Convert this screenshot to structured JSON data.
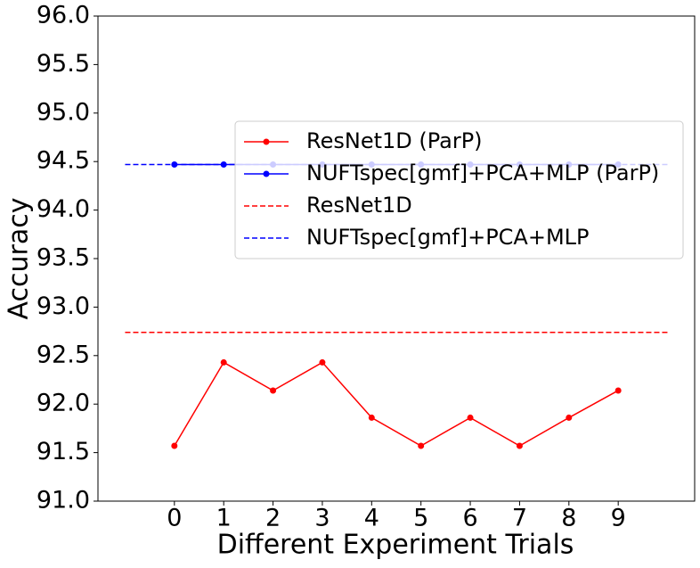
{
  "chart_data": {
    "type": "line",
    "xlabel": "Different Experiment Trials",
    "ylabel": "Accuracy",
    "x": [
      0,
      1,
      2,
      3,
      4,
      5,
      6,
      7,
      8,
      9
    ],
    "series": [
      {
        "name": "ResNet1D (ParP)",
        "color": "#ff0000",
        "linestyle": "solid",
        "marker": "o",
        "values": [
          91.57,
          92.43,
          92.14,
          92.43,
          91.86,
          91.57,
          91.86,
          91.57,
          91.86,
          92.14
        ]
      },
      {
        "name": "NUFTspec[gmf]+PCA+MLP (ParP)",
        "color": "#0000ff",
        "linestyle": "solid",
        "marker": "o",
        "values": [
          94.47,
          94.47,
          94.47,
          94.47,
          94.47,
          94.47,
          94.47,
          94.47,
          94.47,
          94.47
        ]
      },
      {
        "name": "ResNet1D",
        "color": "#ff0000",
        "linestyle": "dashed",
        "x": [
          -1,
          10
        ],
        "values": [
          92.74,
          92.74
        ]
      },
      {
        "name": "NUFTspec[gmf]+PCA+MLP",
        "color": "#0000ff",
        "linestyle": "dashed",
        "x": [
          -1,
          10
        ],
        "values": [
          94.47,
          94.47
        ]
      }
    ],
    "xlim": [
      -1.55,
      10.55
    ],
    "ylim": [
      91,
      96
    ],
    "xticks": [
      0,
      1,
      2,
      3,
      4,
      5,
      6,
      7,
      8,
      9
    ],
    "yticks": [
      {
        "value": 91,
        "label": "91.0"
      },
      91.5,
      {
        "value": 92,
        "label": "92.0"
      },
      92.5,
      {
        "value": 93,
        "label": "93.0"
      },
      93.5,
      {
        "value": 94,
        "label": "94.0"
      },
      94.5,
      {
        "value": 95,
        "label": "95.0"
      },
      95.5,
      {
        "value": 96,
        "label": "96.0"
      }
    ],
    "grid": false,
    "legend": "center right"
  }
}
